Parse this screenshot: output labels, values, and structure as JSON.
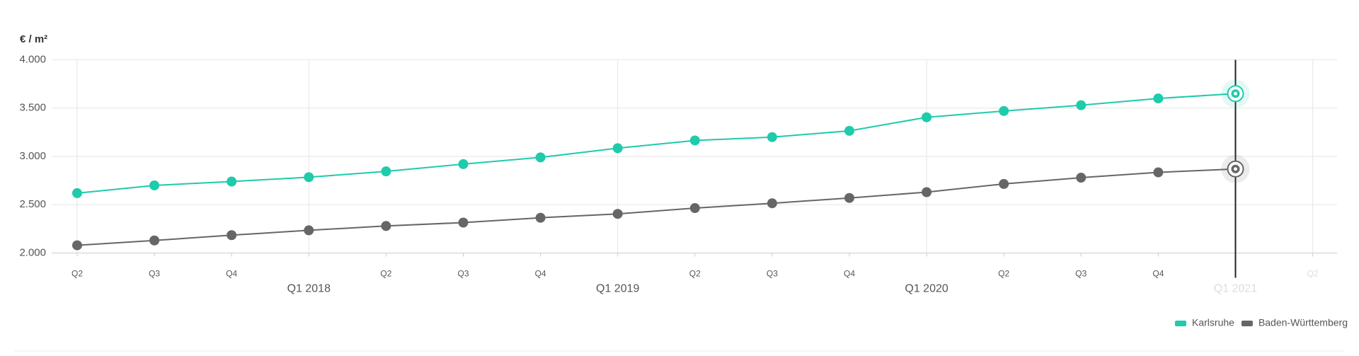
{
  "chart_data": {
    "type": "line",
    "y_label": "€ / m²",
    "categories": [
      "Q2",
      "Q3",
      "Q4",
      "Q1 2018",
      "Q2",
      "Q3",
      "Q4",
      "Q1 2019",
      "Q2",
      "Q3",
      "Q4",
      "Q1 2020",
      "Q2",
      "Q3",
      "Q4",
      "Q1 2021",
      "Q2"
    ],
    "series": [
      {
        "name": "Karlsruhe",
        "color": "#1ecbab",
        "values": [
          2620,
          2700,
          2740,
          2785,
          2845,
          2920,
          2990,
          3085,
          3165,
          3200,
          3265,
          3405,
          3470,
          3530,
          3600,
          3650,
          null
        ]
      },
      {
        "name": "Baden-Württemberg",
        "color": "#666666",
        "values": [
          2080,
          2130,
          2185,
          2235,
          2280,
          2315,
          2365,
          2405,
          2465,
          2515,
          2570,
          2630,
          2715,
          2780,
          2835,
          2870,
          null
        ]
      }
    ],
    "ylim": [
      2000,
      4000
    ],
    "yticks": [
      {
        "value": 2000,
        "label": "2.000"
      },
      {
        "value": 2500,
        "label": "2.500"
      },
      {
        "value": 3000,
        "label": "3.000"
      },
      {
        "value": 3500,
        "label": "3.500"
      },
      {
        "value": 4000,
        "label": "4.000"
      }
    ],
    "grid": true,
    "legend": "bottom-right"
  }
}
